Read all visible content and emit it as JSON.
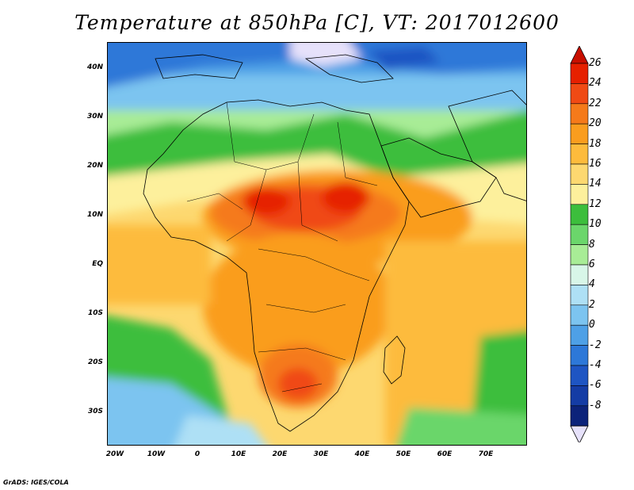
{
  "title": "Temperature at 850hPa [C], VT: 2017012600",
  "footer": "GrADS: IGES/COLA",
  "lat_ticks": [
    "40N",
    "30N",
    "20N",
    "10N",
    "EQ",
    "10S",
    "20S",
    "30S"
  ],
  "lon_ticks": [
    "20W",
    "10W",
    "0",
    "10E",
    "20E",
    "30E",
    "40E",
    "50E",
    "60E",
    "70E"
  ],
  "colorbar": {
    "labels": [
      "26",
      "24",
      "22",
      "20",
      "18",
      "16",
      "14",
      "12",
      "10",
      "8",
      "6",
      "4",
      "2",
      "0",
      "-2",
      "-4",
      "-6",
      "-8"
    ],
    "colors": [
      "#e62000",
      "#f04a14",
      "#f57a1a",
      "#fa9d1e",
      "#fdbb3c",
      "#fdd870",
      "#fdf09c",
      "#3cbe3c",
      "#6bd66b",
      "#a8ec96",
      "#d8f6e8",
      "#aee0f5",
      "#7cc4f0",
      "#4ea0e6",
      "#2d78d8",
      "#1e55c3",
      "#143ca5",
      "#0c237a"
    ],
    "over_color": "#c80f00",
    "under_color": "#e6e1fa"
  }
}
